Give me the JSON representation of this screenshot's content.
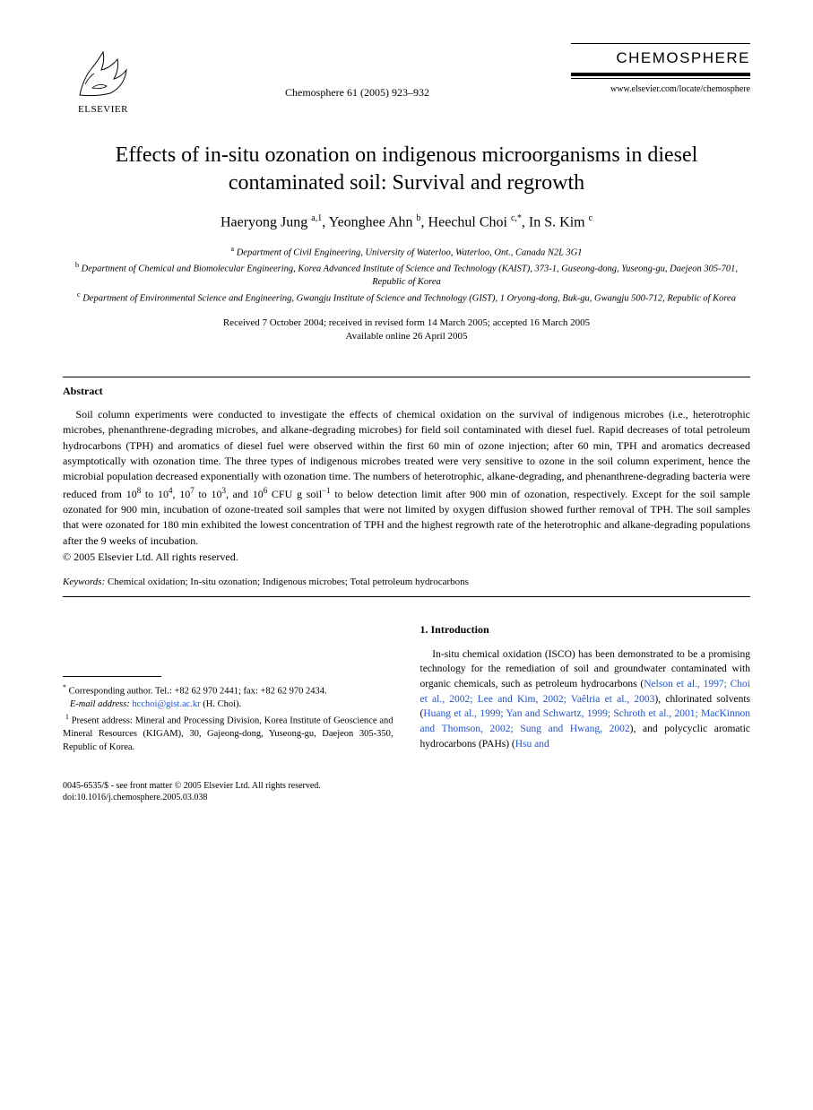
{
  "publisher": {
    "name": "ELSEVIER"
  },
  "citation": "Chemosphere 61 (2005) 923–932",
  "journal": {
    "name": "CHEMOSPHERE",
    "url": "www.elsevier.com/locate/chemosphere"
  },
  "title": "Effects of in-situ ozonation on indigenous microorganisms in diesel contaminated soil: Survival and regrowth",
  "authors_html": "Haeryong Jung <sup>a,1</sup>, Yeonghee Ahn <sup>b</sup>, Heechul Choi <sup>c,*</sup>, In S. Kim <sup>c</sup>",
  "affiliations": {
    "a": "Department of Civil Engineering, University of Waterloo, Waterloo, Ont., Canada N2L 3G1",
    "b": "Department of Chemical and Biomolecular Engineering, Korea Advanced Institute of Science and Technology (KAIST), 373-1, Guseong-dong, Yuseong-gu, Daejeon 305-701, Republic of Korea",
    "c": "Department of Environmental Science and Engineering, Gwangju Institute of Science and Technology (GIST), 1 Oryong-dong, Buk-gu, Gwangju 500-712, Republic of Korea"
  },
  "dates": {
    "received": "Received 7 October 2004; received in revised form 14 March 2005; accepted 16 March 2005",
    "online": "Available online 26 April 2005"
  },
  "abstract": {
    "heading": "Abstract",
    "body_html": "Soil column experiments were conducted to investigate the effects of chemical oxidation on the survival of indigenous microbes (i.e., heterotrophic microbes, phenanthrene-degrading microbes, and alkane-degrading microbes) for field soil contaminated with diesel fuel. Rapid decreases of total petroleum hydrocarbons (TPH) and aromatics of diesel fuel were observed within the first 60 min of ozone injection; after 60 min, TPH and aromatics decreased asymptotically with ozonation time. The three types of indigenous microbes treated were very sensitive to ozone in the soil column experiment, hence the microbial population decreased exponentially with ozonation time. The numbers of heterotrophic, alkane-degrading, and phenanthrene-degrading bacteria were reduced from 10<sup>8</sup> to 10<sup>4</sup>, 10<sup>7</sup> to 10<sup>3</sup>, and 10<sup>6</sup> CFU g soil<sup>−1</sup> to below detection limit after 900 min of ozonation, respectively. Except for the soil sample ozonated for 900 min, incubation of ozone-treated soil samples that were not limited by oxygen diffusion showed further removal of TPH. The soil samples that were ozonated for 180 min exhibited the lowest concentration of TPH and the highest regrowth rate of the heterotrophic and alkane-degrading populations after the 9 weeks of incubation.",
    "copyright": "© 2005 Elsevier Ltd. All rights reserved."
  },
  "keywords": {
    "label": "Keywords:",
    "text": "Chemical oxidation; In-situ ozonation; Indigenous microbes; Total petroleum hydrocarbons"
  },
  "footnotes": {
    "corresponding": "Corresponding author. Tel.: +82 62 970 2441; fax: +82 62 970 2434.",
    "email_label": "E-mail address:",
    "email": "hcchoi@gist.ac.kr",
    "email_author": "(H. Choi).",
    "present": "Present address: Mineral and Processing Division, Korea Institute of Geoscience and Mineral Resources (KIGAM), 30, Gajeong-dong, Yuseong-gu, Daejeon 305-350, Republic of Korea."
  },
  "introduction": {
    "heading": "1. Introduction",
    "body_html": "In-situ chemical oxidation (ISCO) has been demonstrated to be a promising technology for the remediation of soil and groundwater contaminated with organic chemicals, such as petroleum hydrocarbons (<span class=\"ref\">Nelson et al., 1997; Choi et al., 2002; Lee and Kim, 2002; Vaêlria et al., 2003</span>), chlorinated solvents (<span class=\"ref\">Huang et al., 1999; Yan and Schwartz, 1999; Schroth et al., 2001; MacKinnon and Thomson, 2002; Sung and Hwang, 2002</span>), and polycyclic aromatic hydrocarbons (PAHs) (<span class=\"ref\">Hsu and</span>"
  },
  "footer": {
    "line1": "0045-6535/$ - see front matter © 2005 Elsevier Ltd. All rights reserved.",
    "line2": "doi:10.1016/j.chemosphere.2005.03.038"
  },
  "colors": {
    "link": "#2255cc",
    "text": "#000000",
    "background": "#ffffff"
  }
}
